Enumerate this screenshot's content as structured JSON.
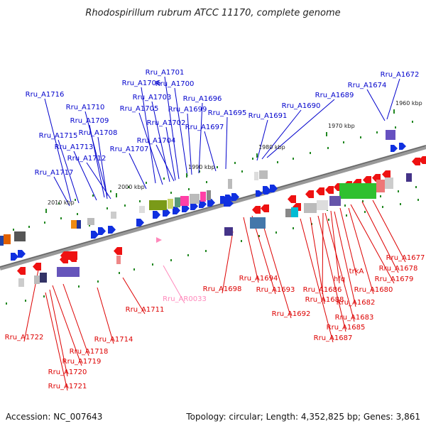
{
  "title": "Rhodospirillum rubrum ATCC 11170, complete genome",
  "footer": {
    "accession": "Accession: NC_007643",
    "topology": "Topology: circular; Length: 4,352,825 bp; Genes: 3,861"
  },
  "colors": {
    "forward_label": "#0000cc",
    "reverse_label": "#dd0000",
    "rna_label": "#ff88bb",
    "backbone": "#888888",
    "tick": "#228822"
  },
  "kbp_markers": [
    "1960 kbp",
    "1970 kbp",
    "1980 kbp",
    "1990 kbp",
    "2000 kbp",
    "2010 kbp"
  ],
  "forward_labels": [
    "Rru_A1701",
    "Rru_A1706",
    "Rru_A1700",
    "Rru_A1703",
    "Rru_A1716",
    "Rru_A1696",
    "Rru_A1710",
    "Rru_A1705",
    "Rru_A1699",
    "Rru_A1709",
    "Rru_A1695",
    "Rru_A1702",
    "Rru_A1697",
    "Rru_A1708",
    "Rru_A1715",
    "Rru_A1704",
    "Rru_A1713",
    "Rru_A1707",
    "Rru_A1712",
    "Rru_A1717",
    "Rru_A1691",
    "Rru_A1690",
    "Rru_A1689",
    "Rru_A1674",
    "Rru_A1672"
  ],
  "reverse_labels": [
    "Rru_A1677",
    "Rru_A1678",
    "trkA",
    "Rru_A1679",
    "hfq",
    "Rru_A1680",
    "Rru_A1694",
    "Rru_A1686",
    "Rru_A1693",
    "Rru_A1698",
    "Rru_A1688",
    "Rru_A1682",
    "Rru_A1711",
    "Rru_A1692",
    "Rru_A1683",
    "Rru_A1685",
    "Rru_A1722",
    "Rru_A1714",
    "Rru_A1687",
    "Rru_A1718",
    "Rru_A1719",
    "Rru_A1720",
    "Rru_A1721"
  ],
  "rna_labels": [
    "Rru_AR0033"
  ]
}
